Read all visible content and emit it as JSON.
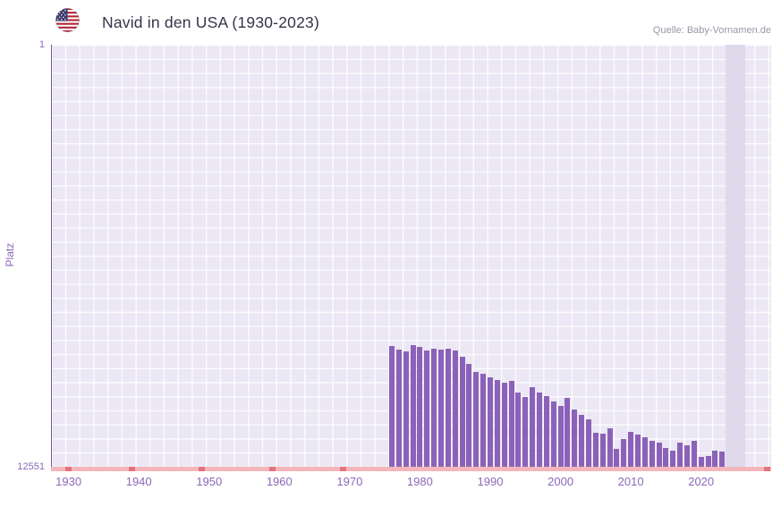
{
  "header": {
    "title": "Navid in den USA (1930-2023)",
    "source": "Quelle: Baby-Vornamen.de",
    "flag_icon": "us-flag"
  },
  "chart_data": {
    "type": "bar",
    "title": "Navid in den USA (1930-2023)",
    "xlabel": "",
    "ylabel": "Platz",
    "y_axis": {
      "min": 1,
      "max": 12551,
      "inverted": true,
      "top_label": "1",
      "bottom_label": "12551"
    },
    "x_ticks": [
      "1930",
      "1940",
      "1950",
      "1960",
      "1970",
      "1980",
      "1990",
      "2000",
      "2010",
      "2020"
    ],
    "x_range": [
      1930,
      2023
    ],
    "grid": true,
    "legend": "none",
    "series": [
      {
        "name": "Platz",
        "years": [
          1976,
          1977,
          1978,
          1979,
          1980,
          1981,
          1982,
          1983,
          1984,
          1985,
          1986,
          1987,
          1988,
          1989,
          1990,
          1991,
          1992,
          1993,
          1994,
          1995,
          1996,
          1997,
          1998,
          1999,
          2000,
          2001,
          2002,
          2003,
          2004,
          2005,
          2006,
          2007,
          2008,
          2009,
          2010,
          2011,
          2012,
          2013,
          2014,
          2015,
          2016,
          2017,
          2018,
          2019,
          2020,
          2021,
          2022,
          2023
        ],
        "ranks": [
          8950,
          9060,
          9110,
          8940,
          9000,
          9100,
          9040,
          9070,
          9040,
          9080,
          9280,
          9500,
          9730,
          9790,
          9890,
          9980,
          10060,
          10010,
          10330,
          10480,
          10190,
          10330,
          10440,
          10600,
          10730,
          10510,
          10860,
          11000,
          11130,
          11530,
          11560,
          11400,
          12010,
          11720,
          11500,
          11580,
          11660,
          11790,
          11820,
          11980,
          12080,
          11840,
          11920,
          11790,
          12270,
          12240,
          12080,
          12110
        ]
      }
    ],
    "unranked_markers": {
      "years": [
        1930,
        1939,
        1949,
        1959,
        1969
      ],
      "right_edge": true
    },
    "colors": {
      "bar": "#8b62b8",
      "plot_bg": "#ebe7f4",
      "grid_line": "#ffffff",
      "axis_text": "#8b68b8",
      "baseline": "#f2b6bb",
      "marker": "#e4737d",
      "title": "#37334a",
      "source": "#9a97a6",
      "highlight_band": "#dfd9ec",
      "spine": "#6f5ba6"
    }
  }
}
